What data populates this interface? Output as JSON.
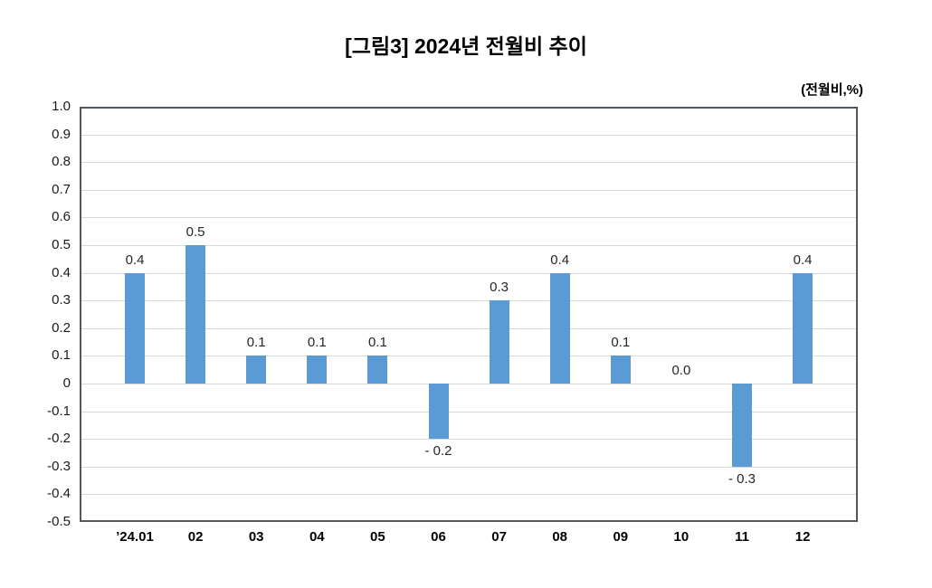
{
  "title": "[그림3]  2024년 전월비 추이",
  "unit_label": "(전월비,%)",
  "chart_data": {
    "type": "bar",
    "title": "[그림3]  2024년 전월비 추이",
    "unit": "(전월비,%)",
    "categories": [
      "’24.01",
      "02",
      "03",
      "04",
      "05",
      "06",
      "07",
      "08",
      "09",
      "10",
      "11",
      "12"
    ],
    "values": [
      0.4,
      0.5,
      0.1,
      0.1,
      0.1,
      -0.2,
      0.3,
      0.4,
      0.1,
      0.0,
      -0.3,
      0.4
    ],
    "data_labels": [
      "0.4",
      "0.5",
      "0.1",
      "0.1",
      "0.1",
      "- 0.2",
      "0.3",
      "0.4",
      "0.1",
      "0.0",
      "- 0.3",
      "0.4"
    ],
    "y_ticks": [
      "1.0",
      "0.9",
      "0.8",
      "0.7",
      "0.6",
      "0.5",
      "0.4",
      "0.3",
      "0.2",
      "0.1",
      "0",
      "-0.1",
      "-0.2",
      "-0.3",
      "-0.4",
      "-0.5"
    ],
    "ylim": [
      -0.5,
      1.0
    ],
    "y_step": 0.1,
    "grid": true,
    "legend": "none",
    "xlabel": "",
    "ylabel": "",
    "colors": {
      "bar": "#5b9bd5",
      "frame": "#51585e",
      "gridline": "#d9d9d9",
      "title_text": "#000000",
      "axis_text": "#1a1a1a",
      "data_label_text": "#262626",
      "background": "#ffffff"
    }
  }
}
